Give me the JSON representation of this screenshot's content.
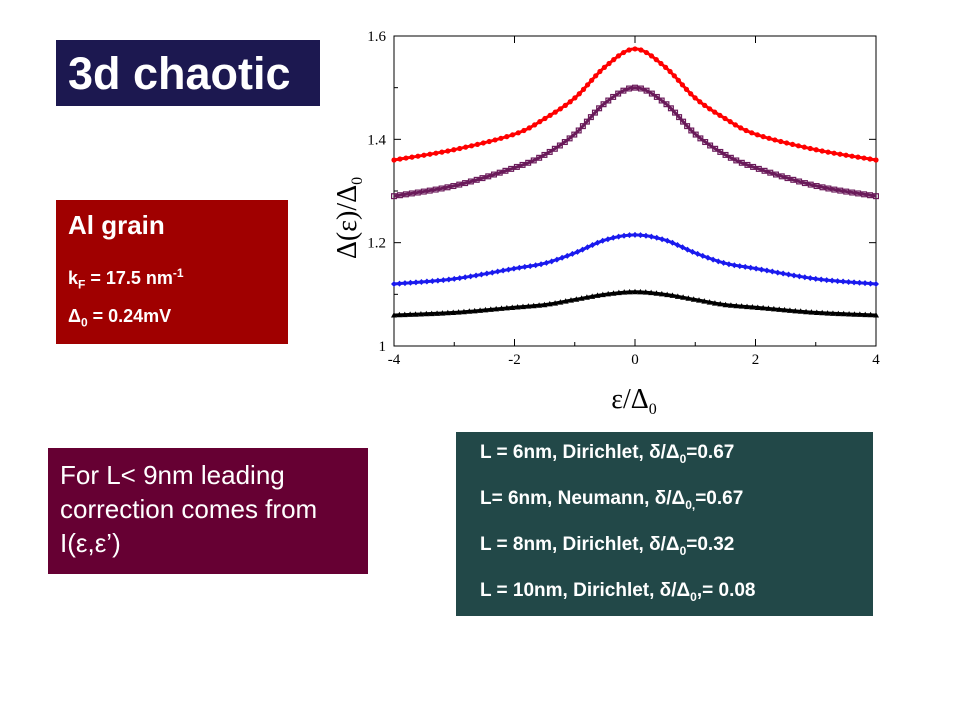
{
  "title": "3d chaotic",
  "grain_box": {
    "title": "Al grain",
    "kf_label": "k",
    "kf_sub": "F",
    "kf_value": " = 17.5 nm",
    "kf_sup": "-1",
    "delta_symbol": "Δ",
    "delta_sub": "0",
    "delta_value": " = 0.24mV"
  },
  "note": "For L< 9nm leading correction comes from I(ε,ε’)",
  "legend": [
    {
      "pre": "L = 6nm, Dirichlet, δ/Δ",
      "sub": "0",
      "post": "=0.67"
    },
    {
      "pre": "L= 6nm, Neumann, δ/Δ",
      "sub": "0,",
      "post": "=0.67"
    },
    {
      "pre": "L = 8nm,  Dirichlet, δ/Δ",
      "sub": "0",
      "post": "=0.32"
    },
    {
      "pre": "L = 10nm, Dirichlet, δ/Δ",
      "sub": "0",
      "post": ",= 0.08"
    }
  ],
  "chart_data": {
    "type": "line",
    "xlabel": "ε/Δ0",
    "ylabel": "Δ(ε)/Δ0",
    "xlim": [
      -4,
      4
    ],
    "ylim": [
      1,
      1.6
    ],
    "xticks": [
      "-4",
      "-2",
      "0",
      "2",
      "4"
    ],
    "yticks": [
      "1",
      "1.2",
      "1.4",
      "1.6"
    ],
    "series": [
      {
        "color": "#ff0000",
        "marker": "circle",
        "values": {
          "x": [
            -4,
            -3,
            -2,
            -1.5,
            -1,
            -0.5,
            0,
            0.5,
            1,
            1.5,
            2,
            3,
            4
          ],
          "y": [
            1.36,
            1.38,
            1.41,
            1.44,
            1.48,
            1.54,
            1.575,
            1.54,
            1.48,
            1.44,
            1.41,
            1.38,
            1.36
          ]
        }
      },
      {
        "color": "#6a1a5a",
        "marker": "square",
        "values": {
          "x": [
            -4,
            -3,
            -2,
            -1.5,
            -1,
            -0.5,
            0,
            0.5,
            1,
            1.5,
            2,
            3,
            4
          ],
          "y": [
            1.29,
            1.31,
            1.345,
            1.37,
            1.41,
            1.47,
            1.5,
            1.47,
            1.41,
            1.37,
            1.345,
            1.31,
            1.29
          ]
        }
      },
      {
        "color": "#1a1aee",
        "marker": "diamond",
        "values": {
          "x": [
            -4,
            -3,
            -2,
            -1.5,
            -1,
            -0.5,
            0,
            0.5,
            1,
            1.5,
            2,
            3,
            4
          ],
          "y": [
            1.12,
            1.13,
            1.15,
            1.16,
            1.18,
            1.205,
            1.215,
            1.205,
            1.18,
            1.16,
            1.15,
            1.13,
            1.12
          ]
        }
      },
      {
        "color": "#000000",
        "marker": "triangle",
        "values": {
          "x": [
            -4,
            -3,
            -2,
            -1.5,
            -1,
            -0.5,
            0,
            0.5,
            1,
            1.5,
            2,
            3,
            4
          ],
          "y": [
            1.06,
            1.065,
            1.075,
            1.08,
            1.09,
            1.1,
            1.105,
            1.1,
            1.09,
            1.08,
            1.075,
            1.065,
            1.06
          ]
        }
      }
    ]
  }
}
